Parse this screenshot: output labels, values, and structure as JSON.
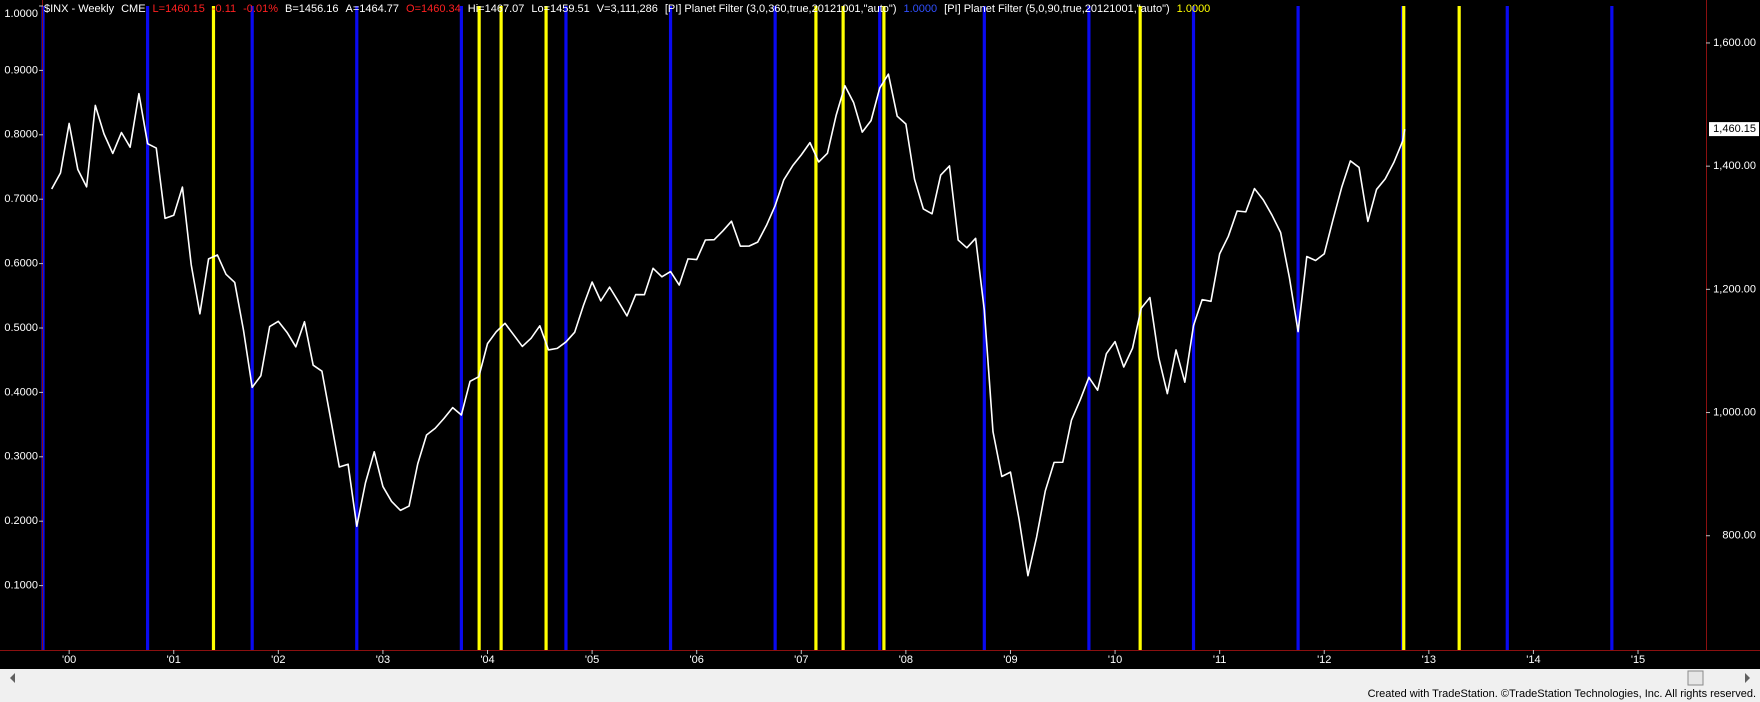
{
  "chart_data": {
    "type": "line",
    "header": {
      "symbol": "$INX - Weekly",
      "exchange": "CME",
      "last": "L=1460.15",
      "net_change": "-0.11",
      "pct_change": "-0.01%",
      "bid": "B=1456.16",
      "ask": "A=1464.77",
      "open": "O=1460.34",
      "high": "Hi=1467.07",
      "low": "Lo=1459.51",
      "volume": "V=3,111,286"
    },
    "xlim": [
      1999.75,
      2015.65
    ],
    "xticks": [
      {
        "value": 2000,
        "label": "'00"
      },
      {
        "value": 2001,
        "label": "'01"
      },
      {
        "value": 2002,
        "label": "'02"
      },
      {
        "value": 2003,
        "label": "'03"
      },
      {
        "value": 2004,
        "label": "'04"
      },
      {
        "value": 2005,
        "label": "'05"
      },
      {
        "value": 2006,
        "label": "'06"
      },
      {
        "value": 2007,
        "label": "'07"
      },
      {
        "value": 2008,
        "label": "'08"
      },
      {
        "value": 2009,
        "label": "'09"
      },
      {
        "value": 2010,
        "label": "'10"
      },
      {
        "value": 2011,
        "label": "'11"
      },
      {
        "value": 2012,
        "label": "'12"
      },
      {
        "value": 2013,
        "label": "'13"
      },
      {
        "value": 2014,
        "label": "'14"
      },
      {
        "value": 2015,
        "label": "'15"
      }
    ],
    "ylim": [
      0,
      1
    ],
    "yticks": [
      {
        "value": 0.1,
        "label": "0.1000"
      },
      {
        "value": 0.2,
        "label": "0.2000"
      },
      {
        "value": 0.3,
        "label": "0.3000"
      },
      {
        "value": 0.4,
        "label": "0.4000"
      },
      {
        "value": 0.5,
        "label": "0.5000"
      },
      {
        "value": 0.6,
        "label": "0.6000"
      },
      {
        "value": 0.7,
        "label": "0.7000"
      },
      {
        "value": 0.8,
        "label": "0.8000"
      },
      {
        "value": 0.9,
        "label": "0.9000"
      },
      {
        "value": 1,
        "label": "1.0000"
      }
    ],
    "y2lim": [
      614.5,
      1660
    ],
    "y2ticks": [
      {
        "value": 800,
        "label": "800.00"
      },
      {
        "value": 1000,
        "label": "1,000.00"
      },
      {
        "value": 1200,
        "label": "1,200.00"
      },
      {
        "value": 1400,
        "label": "1,400.00"
      },
      {
        "value": 1600,
        "label": "1,600.00"
      }
    ],
    "last_price": {
      "value": 1460.15,
      "label": "1,460.15"
    },
    "series": [
      {
        "type": "line",
        "axis": "y2",
        "color": "#ffffff",
        "x": [
          1999.833,
          1999.917,
          2000.0,
          2000.083,
          2000.167,
          2000.25,
          2000.333,
          2000.417,
          2000.5,
          2000.583,
          2000.667,
          2000.75,
          2000.833,
          2000.917,
          2001.0,
          2001.083,
          2001.167,
          2001.25,
          2001.333,
          2001.417,
          2001.5,
          2001.583,
          2001.667,
          2001.75,
          2001.833,
          2001.917,
          2002.0,
          2002.083,
          2002.167,
          2002.25,
          2002.333,
          2002.417,
          2002.5,
          2002.583,
          2002.667,
          2002.75,
          2002.833,
          2002.917,
          2003.0,
          2003.083,
          2003.167,
          2003.25,
          2003.333,
          2003.417,
          2003.5,
          2003.583,
          2003.667,
          2003.75,
          2003.833,
          2003.917,
          2004.0,
          2004.083,
          2004.167,
          2004.25,
          2004.333,
          2004.417,
          2004.5,
          2004.583,
          2004.667,
          2004.75,
          2004.833,
          2004.917,
          2005.0,
          2005.083,
          2005.167,
          2005.25,
          2005.333,
          2005.417,
          2005.5,
          2005.583,
          2005.667,
          2005.75,
          2005.833,
          2005.917,
          2006.0,
          2006.083,
          2006.167,
          2006.25,
          2006.333,
          2006.417,
          2006.5,
          2006.583,
          2006.667,
          2006.75,
          2006.833,
          2006.917,
          2007.0,
          2007.083,
          2007.167,
          2007.25,
          2007.333,
          2007.417,
          2007.5,
          2007.583,
          2007.667,
          2007.75,
          2007.833,
          2007.917,
          2008.0,
          2008.083,
          2008.167,
          2008.25,
          2008.333,
          2008.417,
          2008.5,
          2008.583,
          2008.667,
          2008.75,
          2008.833,
          2008.917,
          2009.0,
          2009.083,
          2009.167,
          2009.25,
          2009.333,
          2009.417,
          2009.5,
          2009.583,
          2009.667,
          2009.75,
          2009.833,
          2009.917,
          2010.0,
          2010.083,
          2010.167,
          2010.25,
          2010.333,
          2010.417,
          2010.5,
          2010.583,
          2010.667,
          2010.75,
          2010.833,
          2010.917,
          2011.0,
          2011.083,
          2011.167,
          2011.25,
          2011.333,
          2011.417,
          2011.5,
          2011.583,
          2011.667,
          2011.75,
          2011.833,
          2011.917,
          2012.0,
          2012.083,
          2012.167,
          2012.25,
          2012.333,
          2012.417,
          2012.5,
          2012.583,
          2012.667,
          2012.75,
          2012.77
        ],
        "values": [
          1362.9,
          1388.9,
          1469.3,
          1394.5,
          1366.4,
          1498.6,
          1452.4,
          1420.6,
          1454.6,
          1430.8,
          1517.7,
          1436.5,
          1429.4,
          1315.2,
          1320.3,
          1366.0,
          1239.9,
          1160.3,
          1249.5,
          1255.8,
          1224.4,
          1211.2,
          1133.6,
          1040.9,
          1059.8,
          1139.5,
          1148.1,
          1130.2,
          1106.7,
          1147.4,
          1076.9,
          1067.1,
          989.8,
          911.6,
          916.1,
          815.3,
          885.8,
          936.3,
          879.8,
          855.7,
          841.2,
          848.2,
          916.9,
          963.6,
          974.5,
          990.3,
          1008.0,
          996.0,
          1050.7,
          1058.2,
          1111.9,
          1131.1,
          1144.9,
          1126.2,
          1107.3,
          1120.7,
          1140.8,
          1101.7,
          1104.2,
          1114.6,
          1130.2,
          1173.8,
          1211.9,
          1181.3,
          1203.6,
          1180.6,
          1156.9,
          1191.5,
          1191.3,
          1234.2,
          1220.3,
          1228.8,
          1207.0,
          1249.5,
          1248.3,
          1280.1,
          1280.7,
          1294.8,
          1310.6,
          1270.1,
          1270.2,
          1276.7,
          1303.8,
          1335.9,
          1377.9,
          1400.6,
          1418.3,
          1438.2,
          1406.8,
          1420.9,
          1482.4,
          1530.6,
          1503.4,
          1455.3,
          1473.9,
          1526.8,
          1549.4,
          1481.1,
          1468.4,
          1378.6,
          1330.6,
          1322.7,
          1385.6,
          1400.4,
          1280.0,
          1267.4,
          1282.8,
          1166.4,
          968.8,
          896.2,
          903.3,
          825.9,
          735.1,
          797.9,
          872.8,
          919.1,
          919.3,
          987.5,
          1020.6,
          1057.1,
          1036.2,
          1095.6,
          1115.1,
          1073.9,
          1104.5,
          1169.4,
          1186.7,
          1089.4,
          1030.7,
          1101.6,
          1049.3,
          1141.2,
          1183.3,
          1180.6,
          1257.6,
          1286.1,
          1327.2,
          1325.8,
          1363.6,
          1345.2,
          1320.6,
          1292.3,
          1219.0,
          1131.4,
          1253.3,
          1246.9,
          1257.6,
          1312.4,
          1365.7,
          1408.5,
          1397.9,
          1310.3,
          1362.2,
          1379.3,
          1406.6,
          1440.7,
          1460.15
        ]
      },
      {
        "type": "histogram",
        "name": "[PI] Planet Filter (3,0,360,true,20121001,\"auto\")",
        "status_value": "1.0000",
        "color": "#0a0af0",
        "x": [
          1999.75,
          2000.75,
          2001.75,
          2002.75,
          2003.75,
          2004.75,
          2005.75,
          2006.75,
          2007.75,
          2008.75,
          2009.75,
          2010.75,
          2011.75,
          2012.75,
          2013.75,
          2014.75
        ],
        "values": [
          1,
          1,
          1,
          1,
          1,
          1,
          1,
          1,
          1,
          1,
          1,
          1,
          1,
          1,
          1,
          1
        ]
      },
      {
        "type": "histogram",
        "name": "[PI] Planet Filter (5,0,90,true,20121001,\"auto\")",
        "status_value": "1.0000",
        "color": "#ffff00",
        "x": [
          2001.38,
          2003.92,
          2004.13,
          2004.56,
          2007.14,
          2007.4,
          2007.79,
          2010.24,
          2012.76,
          2013.29
        ],
        "values": [
          1,
          1,
          1,
          1,
          1,
          1,
          1,
          1,
          1,
          1
        ]
      }
    ]
  },
  "footer": "Created with TradeStation. ©TradeStation Technologies, Inc. All rights reserved."
}
